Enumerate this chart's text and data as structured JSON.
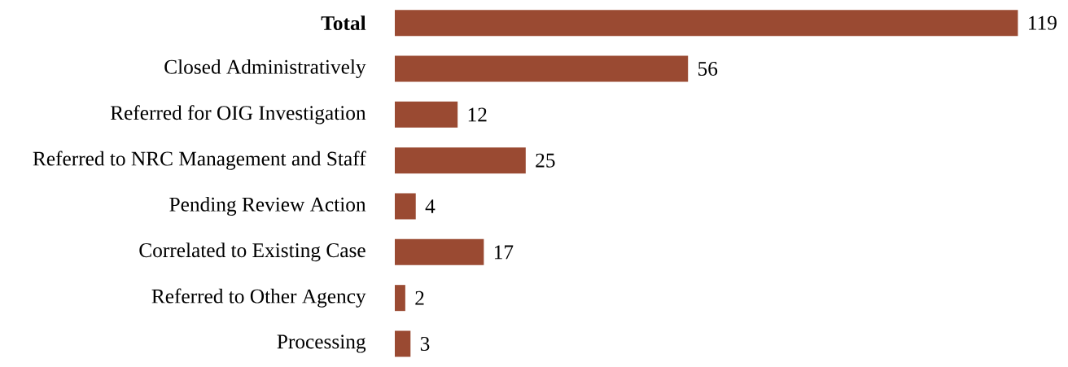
{
  "chart_data": {
    "type": "bar",
    "orientation": "horizontal",
    "categories": [
      "**Total**",
      "Closed Administratively",
      "Referred for OIG Investigation",
      "Referred to NRC Management and Staff",
      "Pending Review Action",
      "Correlated to Existing Case",
      "Referred to Other Agency",
      "Processing"
    ],
    "values": [
      119,
      56,
      12,
      25,
      4,
      17,
      2,
      3
    ],
    "color": "#9a4a32",
    "data_labels": true
  }
}
